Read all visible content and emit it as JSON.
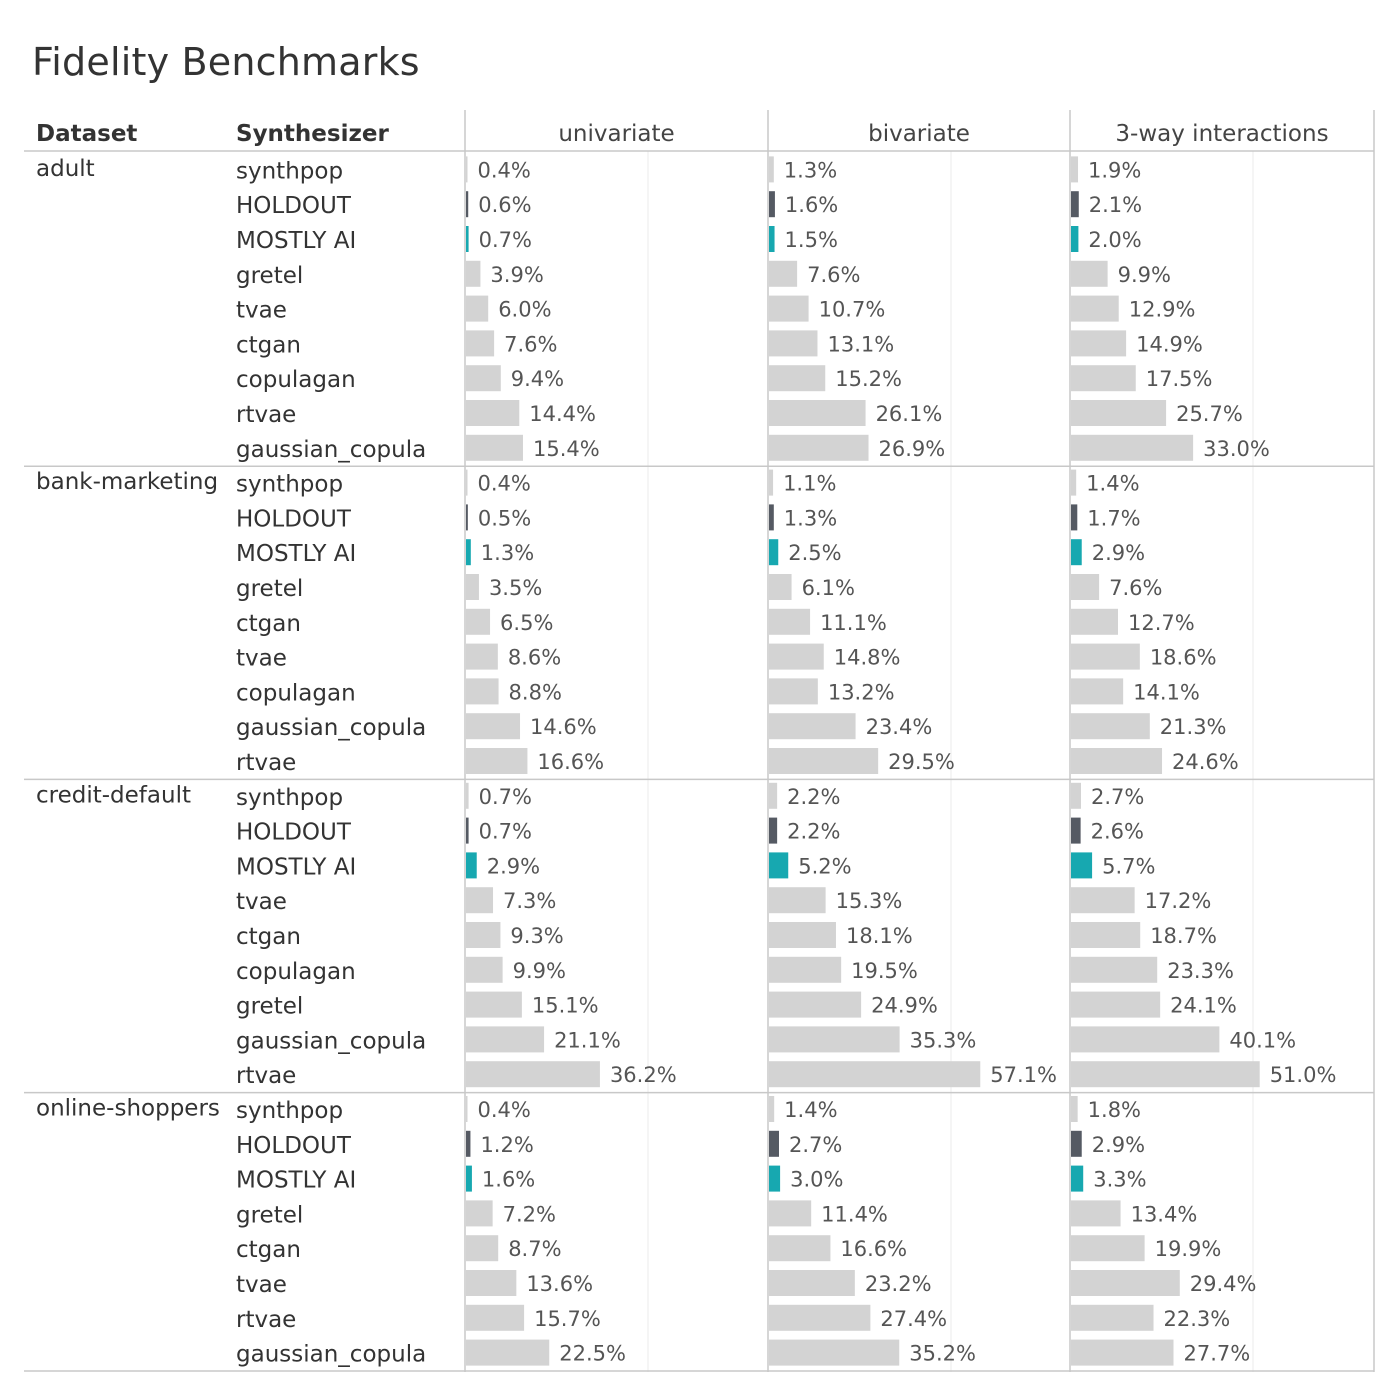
{
  "title": "Fidelity Benchmarks",
  "chart_data": {
    "type": "bar",
    "orientation": "horizontal",
    "title": "Fidelity Benchmarks",
    "row_headers": [
      "Dataset",
      "Synthesizer"
    ],
    "columns": [
      "univariate",
      "bivariate",
      "3-way interactions"
    ],
    "value_format": "percent",
    "xlim": [
      0,
      60
    ],
    "colors": {
      "default": "#d3d3d3",
      "HOLDOUT": "#555a63",
      "MOSTLY AI": "#17a8b0",
      "label": "#555555",
      "divider": "#c8c8c8",
      "grid": "#ebebeb"
    },
    "groups": [
      {
        "dataset": "adult",
        "rows": [
          {
            "synthesizer": "synthpop",
            "values": [
              0.4,
              1.3,
              1.9
            ]
          },
          {
            "synthesizer": "HOLDOUT",
            "values": [
              0.6,
              1.6,
              2.1
            ]
          },
          {
            "synthesizer": "MOSTLY AI",
            "values": [
              0.7,
              1.5,
              2.0
            ]
          },
          {
            "synthesizer": "gretel",
            "values": [
              3.9,
              7.6,
              9.9
            ]
          },
          {
            "synthesizer": "tvae",
            "values": [
              6.0,
              10.7,
              12.9
            ]
          },
          {
            "synthesizer": "ctgan",
            "values": [
              7.6,
              13.1,
              14.9
            ]
          },
          {
            "synthesizer": "copulagan",
            "values": [
              9.4,
              15.2,
              17.5
            ]
          },
          {
            "synthesizer": "rtvae",
            "values": [
              14.4,
              26.1,
              25.7
            ]
          },
          {
            "synthesizer": "gaussian_copula",
            "values": [
              15.4,
              26.9,
              33.0
            ]
          }
        ]
      },
      {
        "dataset": "bank-marketing",
        "rows": [
          {
            "synthesizer": "synthpop",
            "values": [
              0.4,
              1.1,
              1.4
            ]
          },
          {
            "synthesizer": "HOLDOUT",
            "values": [
              0.5,
              1.3,
              1.7
            ]
          },
          {
            "synthesizer": "MOSTLY AI",
            "values": [
              1.3,
              2.5,
              2.9
            ]
          },
          {
            "synthesizer": "gretel",
            "values": [
              3.5,
              6.1,
              7.6
            ]
          },
          {
            "synthesizer": "ctgan",
            "values": [
              6.5,
              11.1,
              12.7
            ]
          },
          {
            "synthesizer": "tvae",
            "values": [
              8.6,
              14.8,
              18.6
            ]
          },
          {
            "synthesizer": "copulagan",
            "values": [
              8.8,
              13.2,
              14.1
            ]
          },
          {
            "synthesizer": "gaussian_copula",
            "values": [
              14.6,
              23.4,
              21.3
            ]
          },
          {
            "synthesizer": "rtvae",
            "values": [
              16.6,
              29.5,
              24.6
            ]
          }
        ]
      },
      {
        "dataset": "credit-default",
        "rows": [
          {
            "synthesizer": "synthpop",
            "values": [
              0.7,
              2.2,
              2.7
            ]
          },
          {
            "synthesizer": "HOLDOUT",
            "values": [
              0.7,
              2.2,
              2.6
            ]
          },
          {
            "synthesizer": "MOSTLY AI",
            "values": [
              2.9,
              5.2,
              5.7
            ]
          },
          {
            "synthesizer": "tvae",
            "values": [
              7.3,
              15.3,
              17.2
            ]
          },
          {
            "synthesizer": "ctgan",
            "values": [
              9.3,
              18.1,
              18.7
            ]
          },
          {
            "synthesizer": "copulagan",
            "values": [
              9.9,
              19.5,
              23.3
            ]
          },
          {
            "synthesizer": "gretel",
            "values": [
              15.1,
              24.9,
              24.1
            ]
          },
          {
            "synthesizer": "gaussian_copula",
            "values": [
              21.1,
              35.3,
              40.1
            ]
          },
          {
            "synthesizer": "rtvae",
            "values": [
              36.2,
              57.1,
              51.0
            ]
          }
        ]
      },
      {
        "dataset": "online-shoppers",
        "rows": [
          {
            "synthesizer": "synthpop",
            "values": [
              0.4,
              1.4,
              1.8
            ]
          },
          {
            "synthesizer": "HOLDOUT",
            "values": [
              1.2,
              2.7,
              2.9
            ]
          },
          {
            "synthesizer": "MOSTLY AI",
            "values": [
              1.6,
              3.0,
              3.3
            ]
          },
          {
            "synthesizer": "gretel",
            "values": [
              7.2,
              11.4,
              13.4
            ]
          },
          {
            "synthesizer": "ctgan",
            "values": [
              8.7,
              16.6,
              19.9
            ]
          },
          {
            "synthesizer": "tvae",
            "values": [
              13.6,
              23.2,
              29.4
            ]
          },
          {
            "synthesizer": "rtvae",
            "values": [
              15.7,
              27.4,
              22.3
            ]
          },
          {
            "synthesizer": "gaussian_copula",
            "values": [
              22.5,
              35.2,
              27.7
            ]
          }
        ]
      }
    ]
  }
}
